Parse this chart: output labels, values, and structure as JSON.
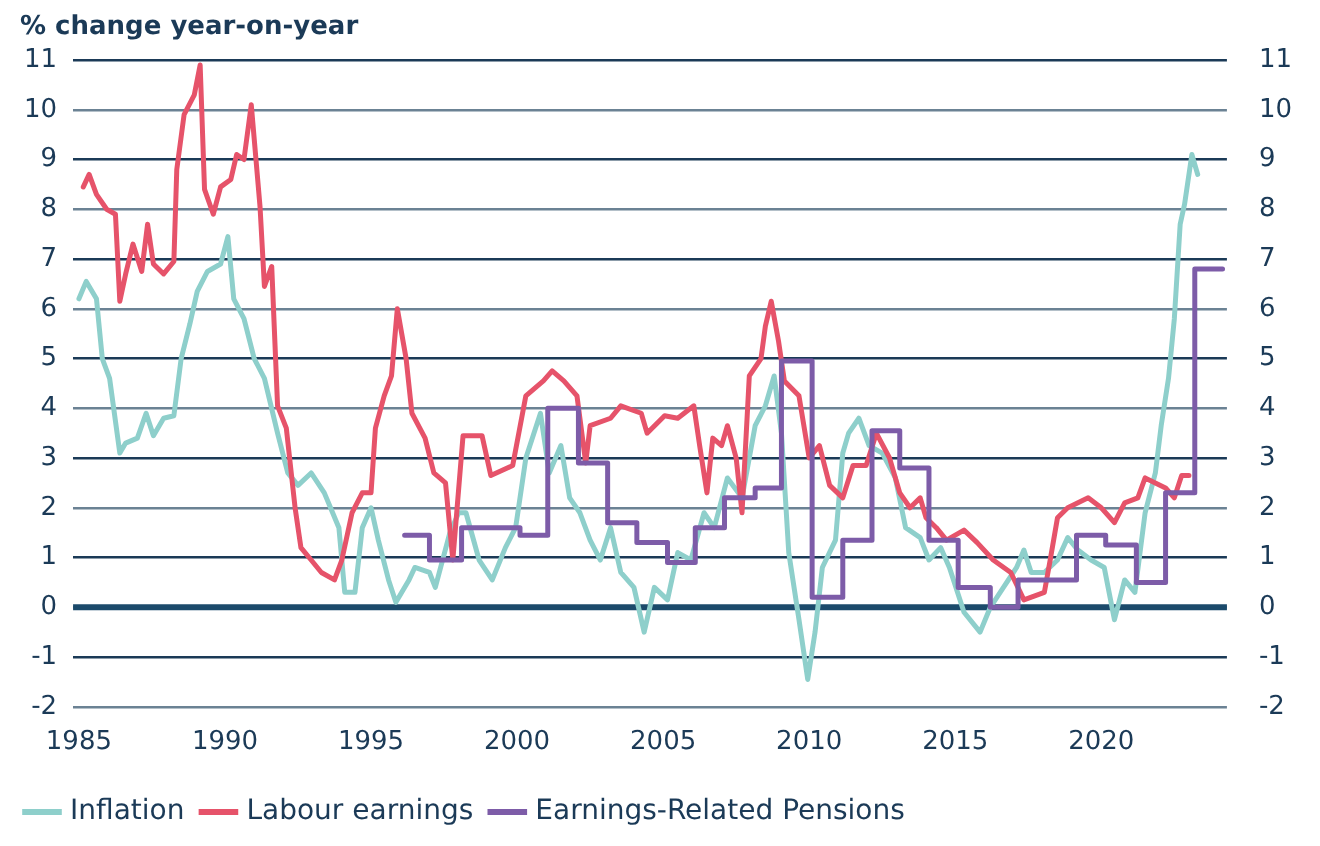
{
  "chart_data": {
    "type": "line",
    "ylabel": "% change year-on-year",
    "xlim": [
      1984.8,
      2024.3
    ],
    "xticks": [
      1985,
      1990,
      1995,
      2000,
      2005,
      2010,
      2015,
      2020
    ],
    "ylim": [
      -2,
      11
    ],
    "yticks": [
      -2,
      -1,
      0,
      1,
      2,
      3,
      4,
      5,
      6,
      7,
      8,
      9,
      10,
      11
    ],
    "y2lim": [
      -2,
      11
    ],
    "y2ticks": [
      -2,
      -1,
      0,
      1,
      2,
      3,
      4,
      5,
      6,
      7,
      8,
      9,
      10,
      11
    ],
    "grid": "y",
    "legend": "bottom left",
    "marker": "none",
    "ref_lines": [
      {
        "axis": "y",
        "value": 0,
        "color": "#1b4a6b"
      }
    ],
    "series": [
      {
        "name": "Inflation",
        "color": "#8ecfcb",
        "x": [
          1985.0,
          1985.25,
          1985.6,
          1985.8,
          1986.05,
          1986.4,
          1986.6,
          1987.0,
          1987.3,
          1987.55,
          1987.9,
          1988.25,
          1988.5,
          1988.8,
          1989.05,
          1989.4,
          1989.85,
          1990.1,
          1990.3,
          1990.65,
          1991.0,
          1991.35,
          1991.8,
          1992.15,
          1992.5,
          1992.95,
          1993.4,
          1993.9,
          1994.1,
          1994.45,
          1994.7,
          1995.0,
          1995.25,
          1995.6,
          1995.85,
          1996.3,
          1996.5,
          1997.0,
          1997.2,
          1997.7,
          1998.0,
          1998.25,
          1998.7,
          1999.15,
          1999.6,
          1999.95,
          2000.3,
          2000.8,
          2001.1,
          2001.5,
          2001.8,
          2002.15,
          2002.5,
          2002.85,
          2003.2,
          2003.55,
          2004.0,
          2004.35,
          2004.7,
          2005.15,
          2005.5,
          2005.95,
          2006.4,
          2006.75,
          2007.2,
          2007.7,
          2008.15,
          2008.5,
          2008.8,
          2009.05,
          2009.3,
          2009.65,
          2009.95,
          2010.2,
          2010.45,
          2010.9,
          2011.15,
          2011.35,
          2011.7,
          2012.05,
          2012.5,
          2012.95,
          2013.3,
          2013.8,
          2014.1,
          2014.5,
          2014.8,
          2015.3,
          2015.85,
          2016.2,
          2016.65,
          2017.1,
          2017.35,
          2017.6,
          2018.05,
          2018.5,
          2018.85,
          2019.2,
          2019.65,
          2020.1,
          2020.45,
          2020.8,
          2021.15,
          2021.5,
          2021.85,
          2022.05,
          2022.3,
          2022.5,
          2022.7,
          2022.85,
          2023.1,
          2023.3
        ],
        "values": [
          6.2,
          6.55,
          6.2,
          5.0,
          4.6,
          3.1,
          3.3,
          3.4,
          3.9,
          3.45,
          3.8,
          3.85,
          5.0,
          5.7,
          6.35,
          6.75,
          6.9,
          7.45,
          6.2,
          5.8,
          5.0,
          4.6,
          3.5,
          2.7,
          2.45,
          2.7,
          2.3,
          1.6,
          0.3,
          0.3,
          1.6,
          2.0,
          1.35,
          0.55,
          0.1,
          0.55,
          0.8,
          0.7,
          0.4,
          1.5,
          1.9,
          1.9,
          0.95,
          0.55,
          1.2,
          1.6,
          3.0,
          3.9,
          2.7,
          3.25,
          2.2,
          1.9,
          1.35,
          0.95,
          1.6,
          0.7,
          0.4,
          -0.5,
          0.4,
          0.15,
          1.1,
          0.95,
          1.9,
          1.6,
          2.6,
          2.2,
          3.65,
          4.05,
          4.65,
          3.5,
          1.1,
          -0.25,
          -1.45,
          -0.5,
          0.8,
          1.35,
          3.1,
          3.5,
          3.8,
          3.25,
          3.1,
          2.6,
          1.6,
          1.4,
          0.95,
          1.2,
          0.8,
          -0.1,
          -0.5,
          0.0,
          0.4,
          0.8,
          1.15,
          0.7,
          0.7,
          0.95,
          1.4,
          1.15,
          0.95,
          0.8,
          -0.25,
          0.55,
          0.3,
          1.9,
          2.7,
          3.65,
          4.6,
          5.8,
          7.7,
          8.1,
          9.1,
          8.7
        ]
      },
      {
        "name": "Labour earnings",
        "color": "#e6536a",
        "x": [
          1985.15,
          1985.35,
          1985.6,
          1985.95,
          1986.25,
          1986.4,
          1986.6,
          1986.85,
          1987.15,
          1987.35,
          1987.55,
          1987.9,
          1988.25,
          1988.35,
          1988.6,
          1988.95,
          1989.15,
          1989.3,
          1989.6,
          1989.85,
          1990.2,
          1990.4,
          1990.65,
          1990.9,
          1991.2,
          1991.35,
          1991.6,
          1991.8,
          1992.1,
          1992.4,
          1992.6,
          1992.95,
          1993.3,
          1993.75,
          1994.0,
          1994.35,
          1994.7,
          1995.0,
          1995.15,
          1995.45,
          1995.7,
          1995.9,
          1996.2,
          1996.4,
          1996.85,
          1997.15,
          1997.55,
          1997.8,
          1998.15,
          1998.8,
          1999.1,
          1999.85,
          2000.3,
          2000.9,
          2001.2,
          2001.6,
          2002.05,
          2002.35,
          2002.5,
          2003.2,
          2003.55,
          2004.25,
          2004.45,
          2005.05,
          2005.5,
          2006.05,
          2006.25,
          2006.5,
          2006.7,
          2007.0,
          2007.2,
          2007.5,
          2007.7,
          2007.95,
          2008.35,
          2008.5,
          2008.7,
          2008.95,
          2009.15,
          2009.65,
          2010.0,
          2010.35,
          2010.7,
          2011.15,
          2011.5,
          2011.95,
          2012.3,
          2012.75,
          2013.1,
          2013.45,
          2013.8,
          2014.0,
          2014.35,
          2014.7,
          2015.3,
          2015.75,
          2016.3,
          2016.9,
          2017.35,
          2018.05,
          2018.25,
          2018.5,
          2018.85,
          2019.55,
          2020.0,
          2020.45,
          2020.8,
          2021.25,
          2021.5,
          2022.2,
          2022.5,
          2022.75,
          2023.0
        ],
        "values": [
          8.45,
          8.7,
          8.3,
          8.0,
          7.9,
          6.15,
          6.7,
          7.3,
          6.75,
          7.7,
          6.9,
          6.7,
          6.95,
          8.8,
          9.9,
          10.3,
          10.9,
          8.4,
          7.9,
          8.45,
          8.6,
          9.1,
          9.0,
          10.1,
          8.05,
          6.45,
          6.85,
          4.05,
          3.6,
          2.0,
          1.2,
          0.95,
          0.7,
          0.55,
          0.95,
          1.9,
          2.3,
          2.3,
          3.6,
          4.25,
          4.65,
          6.0,
          5.0,
          3.9,
          3.4,
          2.7,
          2.5,
          0.95,
          3.45,
          3.45,
          2.65,
          2.85,
          4.25,
          4.55,
          4.75,
          4.55,
          4.25,
          2.9,
          3.65,
          3.8,
          4.05,
          3.9,
          3.5,
          3.85,
          3.8,
          4.05,
          3.25,
          2.3,
          3.4,
          3.25,
          3.65,
          3.0,
          1.9,
          4.65,
          5.0,
          5.65,
          6.15,
          5.35,
          4.55,
          4.25,
          3.0,
          3.25,
          2.45,
          2.2,
          2.85,
          2.85,
          3.5,
          3.0,
          2.3,
          2.0,
          2.2,
          1.8,
          1.6,
          1.35,
          1.55,
          1.3,
          0.95,
          0.7,
          0.15,
          0.3,
          0.95,
          1.8,
          2.0,
          2.2,
          2.0,
          1.7,
          2.1,
          2.2,
          2.6,
          2.4,
          2.2,
          2.65,
          2.65
        ]
      },
      {
        "name": "Earnings-Related Pensions",
        "type": "step",
        "color": "#7d5ca8",
        "x": [
          1996.15,
          1997.0,
          1998.1,
          2000.1,
          2001.05,
          2002.1,
          2003.1,
          2004.1,
          2005.15,
          2006.1,
          2007.1,
          2008.15,
          2009.05,
          2010.1,
          2011.15,
          2012.15,
          2013.1,
          2014.1,
          2015.1,
          2016.2,
          2017.15,
          2019.15,
          2020.15,
          2021.2,
          2022.2,
          2023.2,
          2024.15
        ],
        "values": [
          1.45,
          0.95,
          1.6,
          1.45,
          4.0,
          2.9,
          1.7,
          1.3,
          0.9,
          1.6,
          2.2,
          2.4,
          4.95,
          0.2,
          1.35,
          3.55,
          2.8,
          1.35,
          0.4,
          0.0,
          0.55,
          1.45,
          1.25,
          0.5,
          2.3,
          6.8,
          6.8
        ]
      }
    ]
  }
}
